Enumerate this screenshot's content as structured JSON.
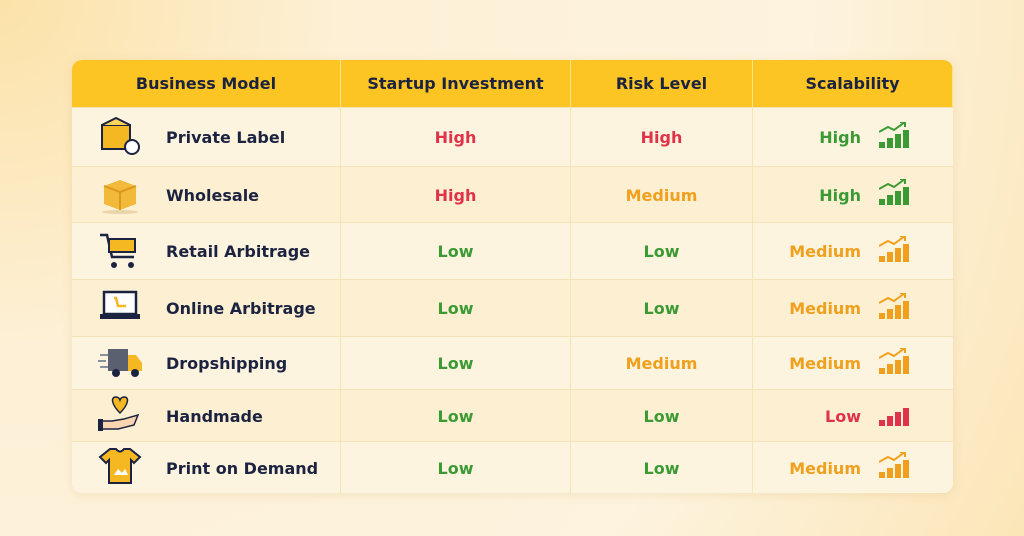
{
  "table": {
    "headers": [
      "Business Model",
      "Startup Investment",
      "Risk Level",
      "Scalability"
    ],
    "rows": [
      {
        "model": "Private Label",
        "investment": {
          "text": "High",
          "color": "#e0334a"
        },
        "risk": {
          "text": "High",
          "color": "#e0334a"
        },
        "scalability": {
          "text": "High",
          "color": "#3c9a34"
        }
      },
      {
        "model": "Wholesale",
        "investment": {
          "text": "High",
          "color": "#e0334a"
        },
        "risk": {
          "text": "Medium",
          "color": "#f0a01c"
        },
        "scalability": {
          "text": "High",
          "color": "#3c9a34"
        }
      },
      {
        "model": "Retail Arbitrage",
        "investment": {
          "text": "Low",
          "color": "#3c9a34"
        },
        "risk": {
          "text": "Low",
          "color": "#3c9a34"
        },
        "scalability": {
          "text": "Medium",
          "color": "#f0a01c"
        }
      },
      {
        "model": "Online Arbitrage",
        "investment": {
          "text": "Low",
          "color": "#3c9a34"
        },
        "risk": {
          "text": "Low",
          "color": "#3c9a34"
        },
        "scalability": {
          "text": "Medium",
          "color": "#f0a01c"
        }
      },
      {
        "model": "Dropshipping",
        "investment": {
          "text": "Low",
          "color": "#3c9a34"
        },
        "risk": {
          "text": "Medium",
          "color": "#f0a01c"
        },
        "scalability": {
          "text": "Medium",
          "color": "#f0a01c"
        }
      },
      {
        "model": "Handmade",
        "investment": {
          "text": "Low",
          "color": "#3c9a34"
        },
        "risk": {
          "text": "Low",
          "color": "#3c9a34"
        },
        "scalability": {
          "text": "Low",
          "color": "#e0334a"
        }
      },
      {
        "model": "Print on Demand",
        "investment": {
          "text": "Low",
          "color": "#3c9a34"
        },
        "risk": {
          "text": "Low",
          "color": "#3c9a34"
        },
        "scalability": {
          "text": "Medium",
          "color": "#f0a01c"
        }
      }
    ]
  }
}
